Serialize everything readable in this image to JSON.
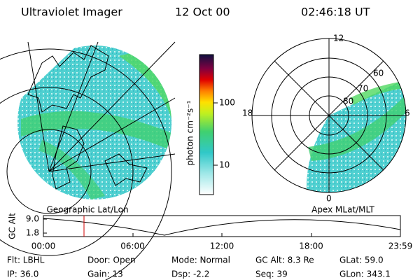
{
  "header": {
    "title": "Ultraviolet Imager",
    "date": "12 Oct 00",
    "time": "02:46:18 UT"
  },
  "colorbar": {
    "label": "photon cm⁻²s⁻¹",
    "ticks": [
      "100",
      "10"
    ]
  },
  "left_panel": {
    "label": "Geographic Lat/Lon"
  },
  "right_panel": {
    "label": "Apex MLat/MLT",
    "rings": [
      "80",
      "70",
      "60"
    ],
    "hours": [
      "12",
      "18",
      "6",
      "0"
    ]
  },
  "alt_plot": {
    "axis_label": "GC Alt",
    "yticks": [
      "9.0",
      "1.8"
    ],
    "xticks": [
      "00:00",
      "06:00",
      "12:00",
      "18:00",
      "23:59"
    ]
  },
  "info": {
    "rows": [
      [
        "Flt: LBHL",
        "Door: Open",
        "Mode: Normal",
        "GC Alt: 8.3 Re",
        "GLat: 59.0"
      ],
      [
        "IP: 36.0",
        "Gain: 13",
        "Dsp: -2.2",
        "Seq: 39",
        "GLon: 343.1"
      ]
    ]
  }
}
